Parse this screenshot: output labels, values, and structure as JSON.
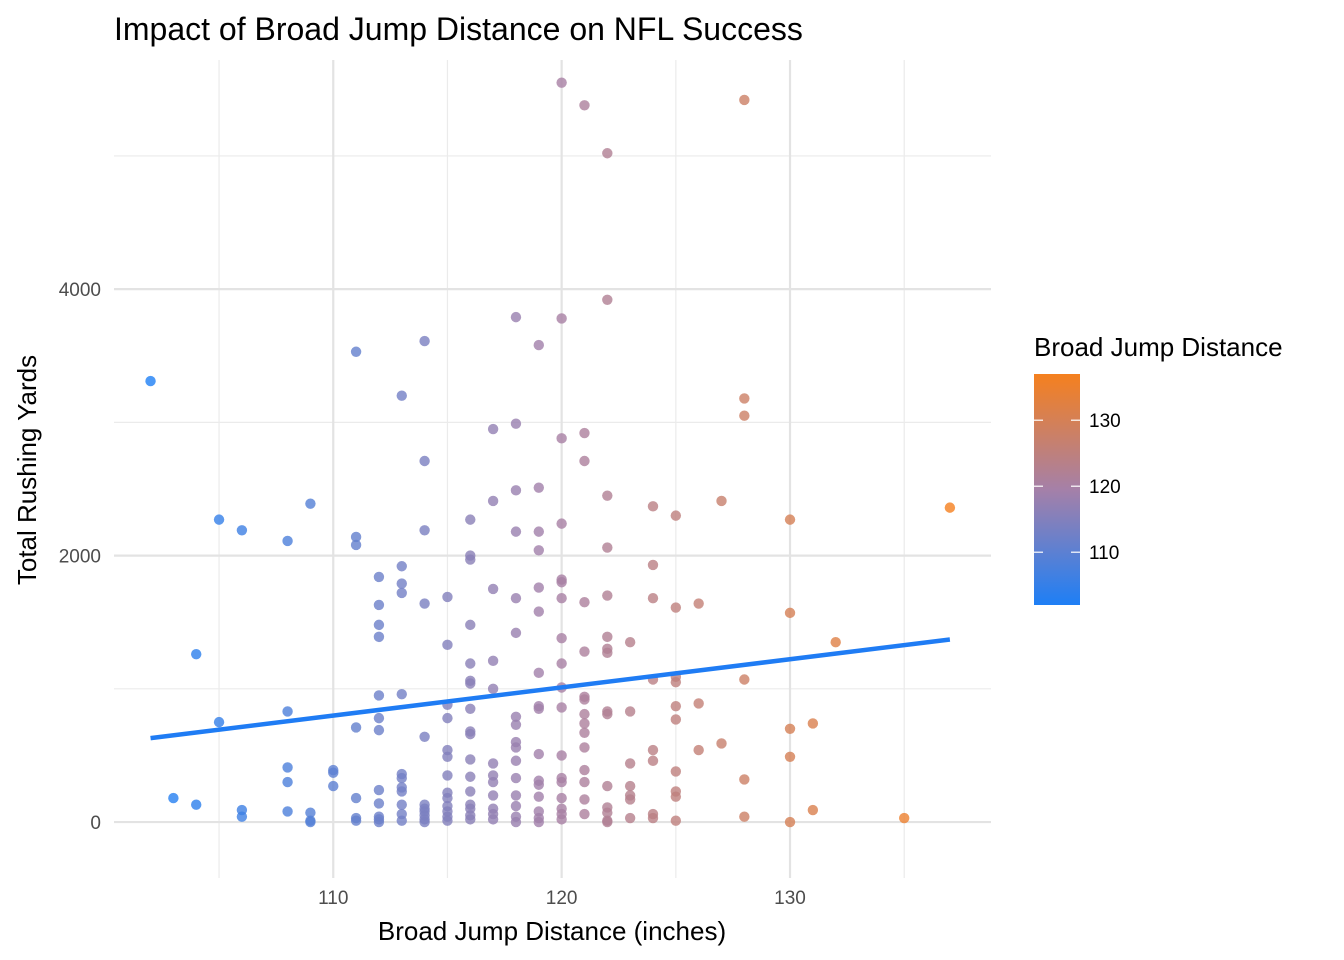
{
  "chart_data": {
    "type": "scatter",
    "title": "Impact of Broad Jump Distance on NFL Success",
    "xlabel": "Broad Jump Distance (inches)",
    "ylabel": "Total Rushing Yards",
    "xlim": [
      100.4,
      138.8
    ],
    "ylim": [
      -420,
      5720
    ],
    "x_ticks": [
      110,
      120,
      130
    ],
    "y_ticks": [
      0,
      2000,
      4000
    ],
    "grid": true,
    "legend": {
      "title": "Broad Jump Distance",
      "position": "right",
      "ticks": [
        110,
        120,
        130
      ],
      "range": [
        102,
        137
      ],
      "color_low": "#1e7ff5",
      "color_high": "#f5801e"
    },
    "trend_line": {
      "x": [
        102,
        137
      ],
      "y": [
        630,
        1370
      ],
      "color": "#1f7cf4"
    },
    "points": [
      {
        "x": 102,
        "y": 3310
      },
      {
        "x": 103,
        "y": 180
      },
      {
        "x": 104,
        "y": 1260
      },
      {
        "x": 104,
        "y": 130
      },
      {
        "x": 105,
        "y": 2270
      },
      {
        "x": 105,
        "y": 750
      },
      {
        "x": 106,
        "y": 2190
      },
      {
        "x": 106,
        "y": 90
      },
      {
        "x": 106,
        "y": 40
      },
      {
        "x": 108,
        "y": 2110
      },
      {
        "x": 108,
        "y": 830
      },
      {
        "x": 108,
        "y": 410
      },
      {
        "x": 108,
        "y": 300
      },
      {
        "x": 108,
        "y": 80
      },
      {
        "x": 109,
        "y": 2390
      },
      {
        "x": 109,
        "y": 70
      },
      {
        "x": 109,
        "y": 10
      },
      {
        "x": 109,
        "y": 0
      },
      {
        "x": 110,
        "y": 390
      },
      {
        "x": 110,
        "y": 370
      },
      {
        "x": 110,
        "y": 270
      },
      {
        "x": 111,
        "y": 3530
      },
      {
        "x": 111,
        "y": 2140
      },
      {
        "x": 111,
        "y": 2080
      },
      {
        "x": 111,
        "y": 710
      },
      {
        "x": 111,
        "y": 180
      },
      {
        "x": 111,
        "y": 30
      },
      {
        "x": 111,
        "y": 10
      },
      {
        "x": 112,
        "y": 1840
      },
      {
        "x": 112,
        "y": 1630
      },
      {
        "x": 112,
        "y": 1480
      },
      {
        "x": 112,
        "y": 1390
      },
      {
        "x": 112,
        "y": 950
      },
      {
        "x": 112,
        "y": 780
      },
      {
        "x": 112,
        "y": 690
      },
      {
        "x": 112,
        "y": 240
      },
      {
        "x": 112,
        "y": 140
      },
      {
        "x": 112,
        "y": 40
      },
      {
        "x": 112,
        "y": 20
      },
      {
        "x": 112,
        "y": 0
      },
      {
        "x": 113,
        "y": 3200
      },
      {
        "x": 113,
        "y": 1920
      },
      {
        "x": 113,
        "y": 1790
      },
      {
        "x": 113,
        "y": 1720
      },
      {
        "x": 113,
        "y": 960
      },
      {
        "x": 113,
        "y": 360
      },
      {
        "x": 113,
        "y": 330
      },
      {
        "x": 113,
        "y": 260
      },
      {
        "x": 113,
        "y": 230
      },
      {
        "x": 113,
        "y": 130
      },
      {
        "x": 113,
        "y": 60
      },
      {
        "x": 113,
        "y": 10
      },
      {
        "x": 114,
        "y": 3610
      },
      {
        "x": 114,
        "y": 2710
      },
      {
        "x": 114,
        "y": 2190
      },
      {
        "x": 114,
        "y": 1640
      },
      {
        "x": 114,
        "y": 640
      },
      {
        "x": 114,
        "y": 130
      },
      {
        "x": 114,
        "y": 100
      },
      {
        "x": 114,
        "y": 80
      },
      {
        "x": 114,
        "y": 50
      },
      {
        "x": 114,
        "y": 20
      },
      {
        "x": 114,
        "y": 0
      },
      {
        "x": 115,
        "y": 1690
      },
      {
        "x": 115,
        "y": 1330
      },
      {
        "x": 115,
        "y": 880
      },
      {
        "x": 115,
        "y": 780
      },
      {
        "x": 115,
        "y": 540
      },
      {
        "x": 115,
        "y": 490
      },
      {
        "x": 115,
        "y": 350
      },
      {
        "x": 115,
        "y": 220
      },
      {
        "x": 115,
        "y": 180
      },
      {
        "x": 115,
        "y": 120
      },
      {
        "x": 115,
        "y": 80
      },
      {
        "x": 115,
        "y": 40
      },
      {
        "x": 115,
        "y": 10
      },
      {
        "x": 116,
        "y": 2270
      },
      {
        "x": 116,
        "y": 2000
      },
      {
        "x": 116,
        "y": 1970
      },
      {
        "x": 116,
        "y": 1480
      },
      {
        "x": 116,
        "y": 1190
      },
      {
        "x": 116,
        "y": 1060
      },
      {
        "x": 116,
        "y": 1040
      },
      {
        "x": 116,
        "y": 850
      },
      {
        "x": 116,
        "y": 680
      },
      {
        "x": 116,
        "y": 660
      },
      {
        "x": 116,
        "y": 470
      },
      {
        "x": 116,
        "y": 340
      },
      {
        "x": 116,
        "y": 230
      },
      {
        "x": 116,
        "y": 130
      },
      {
        "x": 116,
        "y": 100
      },
      {
        "x": 116,
        "y": 50
      },
      {
        "x": 116,
        "y": 20
      },
      {
        "x": 117,
        "y": 2950
      },
      {
        "x": 117,
        "y": 2410
      },
      {
        "x": 117,
        "y": 1750
      },
      {
        "x": 117,
        "y": 1210
      },
      {
        "x": 117,
        "y": 1000
      },
      {
        "x": 117,
        "y": 440
      },
      {
        "x": 117,
        "y": 350
      },
      {
        "x": 117,
        "y": 300
      },
      {
        "x": 117,
        "y": 200
      },
      {
        "x": 117,
        "y": 100
      },
      {
        "x": 117,
        "y": 60
      },
      {
        "x": 117,
        "y": 20
      },
      {
        "x": 118,
        "y": 3790
      },
      {
        "x": 118,
        "y": 2990
      },
      {
        "x": 118,
        "y": 2490
      },
      {
        "x": 118,
        "y": 2180
      },
      {
        "x": 118,
        "y": 1680
      },
      {
        "x": 118,
        "y": 1420
      },
      {
        "x": 118,
        "y": 790
      },
      {
        "x": 118,
        "y": 730
      },
      {
        "x": 118,
        "y": 600
      },
      {
        "x": 118,
        "y": 560
      },
      {
        "x": 118,
        "y": 460
      },
      {
        "x": 118,
        "y": 330
      },
      {
        "x": 118,
        "y": 200
      },
      {
        "x": 118,
        "y": 120
      },
      {
        "x": 118,
        "y": 40
      },
      {
        "x": 118,
        "y": 0
      },
      {
        "x": 119,
        "y": 3580
      },
      {
        "x": 119,
        "y": 2510
      },
      {
        "x": 119,
        "y": 2180
      },
      {
        "x": 119,
        "y": 2040
      },
      {
        "x": 119,
        "y": 1760
      },
      {
        "x": 119,
        "y": 1580
      },
      {
        "x": 119,
        "y": 1120
      },
      {
        "x": 119,
        "y": 870
      },
      {
        "x": 119,
        "y": 850
      },
      {
        "x": 119,
        "y": 510
      },
      {
        "x": 119,
        "y": 310
      },
      {
        "x": 119,
        "y": 280
      },
      {
        "x": 119,
        "y": 190
      },
      {
        "x": 119,
        "y": 80
      },
      {
        "x": 119,
        "y": 30
      },
      {
        "x": 119,
        "y": 0
      },
      {
        "x": 120,
        "y": 5550
      },
      {
        "x": 120,
        "y": 3780
      },
      {
        "x": 120,
        "y": 2880
      },
      {
        "x": 120,
        "y": 2240
      },
      {
        "x": 120,
        "y": 1820
      },
      {
        "x": 120,
        "y": 1800
      },
      {
        "x": 120,
        "y": 1680
      },
      {
        "x": 120,
        "y": 1380
      },
      {
        "x": 120,
        "y": 1190
      },
      {
        "x": 120,
        "y": 1010
      },
      {
        "x": 120,
        "y": 860
      },
      {
        "x": 120,
        "y": 500
      },
      {
        "x": 120,
        "y": 330
      },
      {
        "x": 120,
        "y": 300
      },
      {
        "x": 120,
        "y": 180
      },
      {
        "x": 120,
        "y": 100
      },
      {
        "x": 120,
        "y": 60
      },
      {
        "x": 120,
        "y": 20
      },
      {
        "x": 121,
        "y": 5380
      },
      {
        "x": 121,
        "y": 2920
      },
      {
        "x": 121,
        "y": 2710
      },
      {
        "x": 121,
        "y": 1650
      },
      {
        "x": 121,
        "y": 1280
      },
      {
        "x": 121,
        "y": 940
      },
      {
        "x": 121,
        "y": 920
      },
      {
        "x": 121,
        "y": 810
      },
      {
        "x": 121,
        "y": 740
      },
      {
        "x": 121,
        "y": 670
      },
      {
        "x": 121,
        "y": 560
      },
      {
        "x": 121,
        "y": 390
      },
      {
        "x": 121,
        "y": 300
      },
      {
        "x": 121,
        "y": 170
      },
      {
        "x": 121,
        "y": 60
      },
      {
        "x": 122,
        "y": 5020
      },
      {
        "x": 122,
        "y": 3920
      },
      {
        "x": 122,
        "y": 2450
      },
      {
        "x": 122,
        "y": 2060
      },
      {
        "x": 122,
        "y": 1700
      },
      {
        "x": 122,
        "y": 1390
      },
      {
        "x": 122,
        "y": 1300
      },
      {
        "x": 122,
        "y": 1270
      },
      {
        "x": 122,
        "y": 830
      },
      {
        "x": 122,
        "y": 810
      },
      {
        "x": 122,
        "y": 270
      },
      {
        "x": 122,
        "y": 110
      },
      {
        "x": 122,
        "y": 70
      },
      {
        "x": 122,
        "y": 10
      },
      {
        "x": 122,
        "y": 0
      },
      {
        "x": 123,
        "y": 1350
      },
      {
        "x": 123,
        "y": 830
      },
      {
        "x": 123,
        "y": 440
      },
      {
        "x": 123,
        "y": 270
      },
      {
        "x": 123,
        "y": 200
      },
      {
        "x": 123,
        "y": 170
      },
      {
        "x": 123,
        "y": 30
      },
      {
        "x": 124,
        "y": 2370
      },
      {
        "x": 124,
        "y": 1930
      },
      {
        "x": 124,
        "y": 1680
      },
      {
        "x": 124,
        "y": 1070
      },
      {
        "x": 124,
        "y": 540
      },
      {
        "x": 124,
        "y": 460
      },
      {
        "x": 124,
        "y": 60
      },
      {
        "x": 124,
        "y": 30
      },
      {
        "x": 125,
        "y": 2300
      },
      {
        "x": 125,
        "y": 1610
      },
      {
        "x": 125,
        "y": 1090
      },
      {
        "x": 125,
        "y": 1050
      },
      {
        "x": 125,
        "y": 870
      },
      {
        "x": 125,
        "y": 770
      },
      {
        "x": 125,
        "y": 380
      },
      {
        "x": 125,
        "y": 230
      },
      {
        "x": 125,
        "y": 190
      },
      {
        "x": 125,
        "y": 10
      },
      {
        "x": 126,
        "y": 1640
      },
      {
        "x": 126,
        "y": 890
      },
      {
        "x": 126,
        "y": 540
      },
      {
        "x": 127,
        "y": 2410
      },
      {
        "x": 127,
        "y": 590
      },
      {
        "x": 128,
        "y": 5420
      },
      {
        "x": 128,
        "y": 3180
      },
      {
        "x": 128,
        "y": 3050
      },
      {
        "x": 128,
        "y": 1070
      },
      {
        "x": 128,
        "y": 320
      },
      {
        "x": 128,
        "y": 40
      },
      {
        "x": 130,
        "y": 2270
      },
      {
        "x": 130,
        "y": 1570
      },
      {
        "x": 130,
        "y": 700
      },
      {
        "x": 130,
        "y": 490
      },
      {
        "x": 130,
        "y": 0
      },
      {
        "x": 131,
        "y": 740
      },
      {
        "x": 131,
        "y": 90
      },
      {
        "x": 132,
        "y": 1350
      },
      {
        "x": 135,
        "y": 30
      },
      {
        "x": 137,
        "y": 2360
      }
    ]
  }
}
